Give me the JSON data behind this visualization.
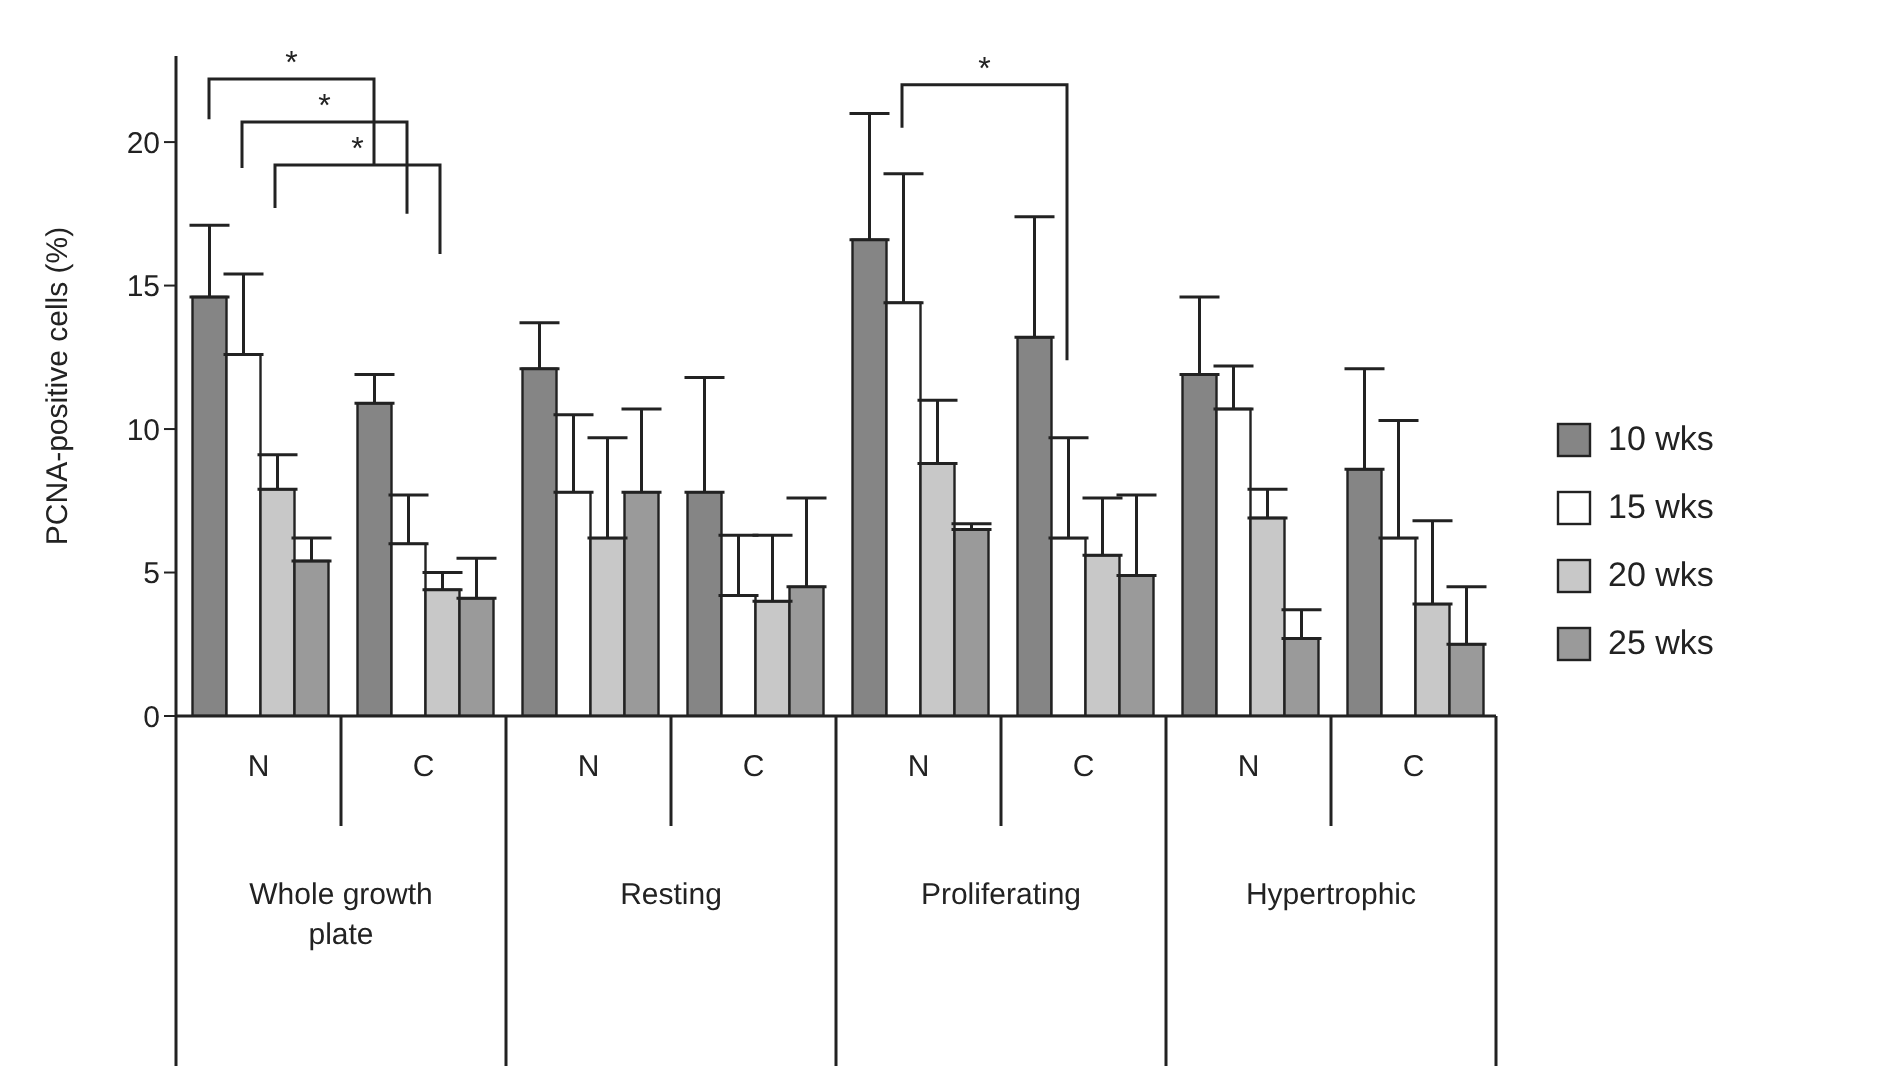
{
  "chart_data": {
    "type": "bar",
    "ylabel": "PCNA-positive cells (%)",
    "categories": [
      "N",
      "C",
      "N",
      "C",
      "N",
      "C",
      "N",
      "C"
    ],
    "series": [
      {
        "name": "10 wks",
        "color": "#858585",
        "values": [
          14.6,
          10.9,
          12.1,
          7.8,
          16.6,
          13.2,
          11.9,
          8.6
        ],
        "errors": [
          [
            14.6,
            17.1
          ],
          [
            10.9,
            11.9
          ],
          [
            12.1,
            13.7
          ],
          [
            7.8,
            11.8
          ],
          [
            16.6,
            21.0
          ],
          [
            13.2,
            17.4
          ],
          [
            11.9,
            14.6
          ],
          [
            8.6,
            12.1
          ]
        ]
      },
      {
        "name": "15 wks",
        "color": "#ffffff",
        "values": [
          12.6,
          6.0,
          7.8,
          4.2,
          14.4,
          6.2,
          10.7,
          6.2
        ],
        "errors": [
          [
            12.6,
            15.4
          ],
          [
            6.0,
            7.7
          ],
          [
            7.8,
            10.5
          ],
          [
            4.2,
            6.3
          ],
          [
            14.4,
            18.9
          ],
          [
            6.2,
            9.7
          ],
          [
            10.7,
            12.2
          ],
          [
            6.2,
            10.3
          ]
        ]
      },
      {
        "name": "20 wks",
        "color": "#c8c8c8",
        "values": [
          7.9,
          4.4,
          6.2,
          4.0,
          8.8,
          5.6,
          6.9,
          3.9
        ],
        "errors": [
          [
            7.9,
            9.1
          ],
          [
            4.4,
            5.0
          ],
          [
            6.2,
            9.7
          ],
          [
            4.0,
            6.3
          ],
          [
            8.8,
            11.0
          ],
          [
            5.6,
            7.6
          ],
          [
            6.9,
            7.9
          ],
          [
            3.9,
            6.8
          ]
        ]
      },
      {
        "name": "25 wks",
        "color": "#9a9a9a",
        "values": [
          5.4,
          4.1,
          7.8,
          4.5,
          6.5,
          4.9,
          2.7,
          2.5
        ],
        "errors": [
          [
            5.4,
            6.2
          ],
          [
            4.1,
            5.5
          ],
          [
            7.8,
            10.7
          ],
          [
            4.5,
            7.6
          ],
          [
            6.5,
            6.7
          ],
          [
            4.9,
            7.7
          ],
          [
            2.7,
            3.7
          ],
          [
            2.5,
            4.5
          ]
        ]
      }
    ],
    "annotations": [
      "Whole growth plate",
      "Resting",
      "Proliferating",
      "Hypertrophic",
      "*",
      "*",
      "*",
      "*"
    ],
    "ylim": [
      0,
      23
    ],
    "yticks": [
      0,
      5,
      10,
      15,
      20
    ],
    "legend": "right"
  }
}
